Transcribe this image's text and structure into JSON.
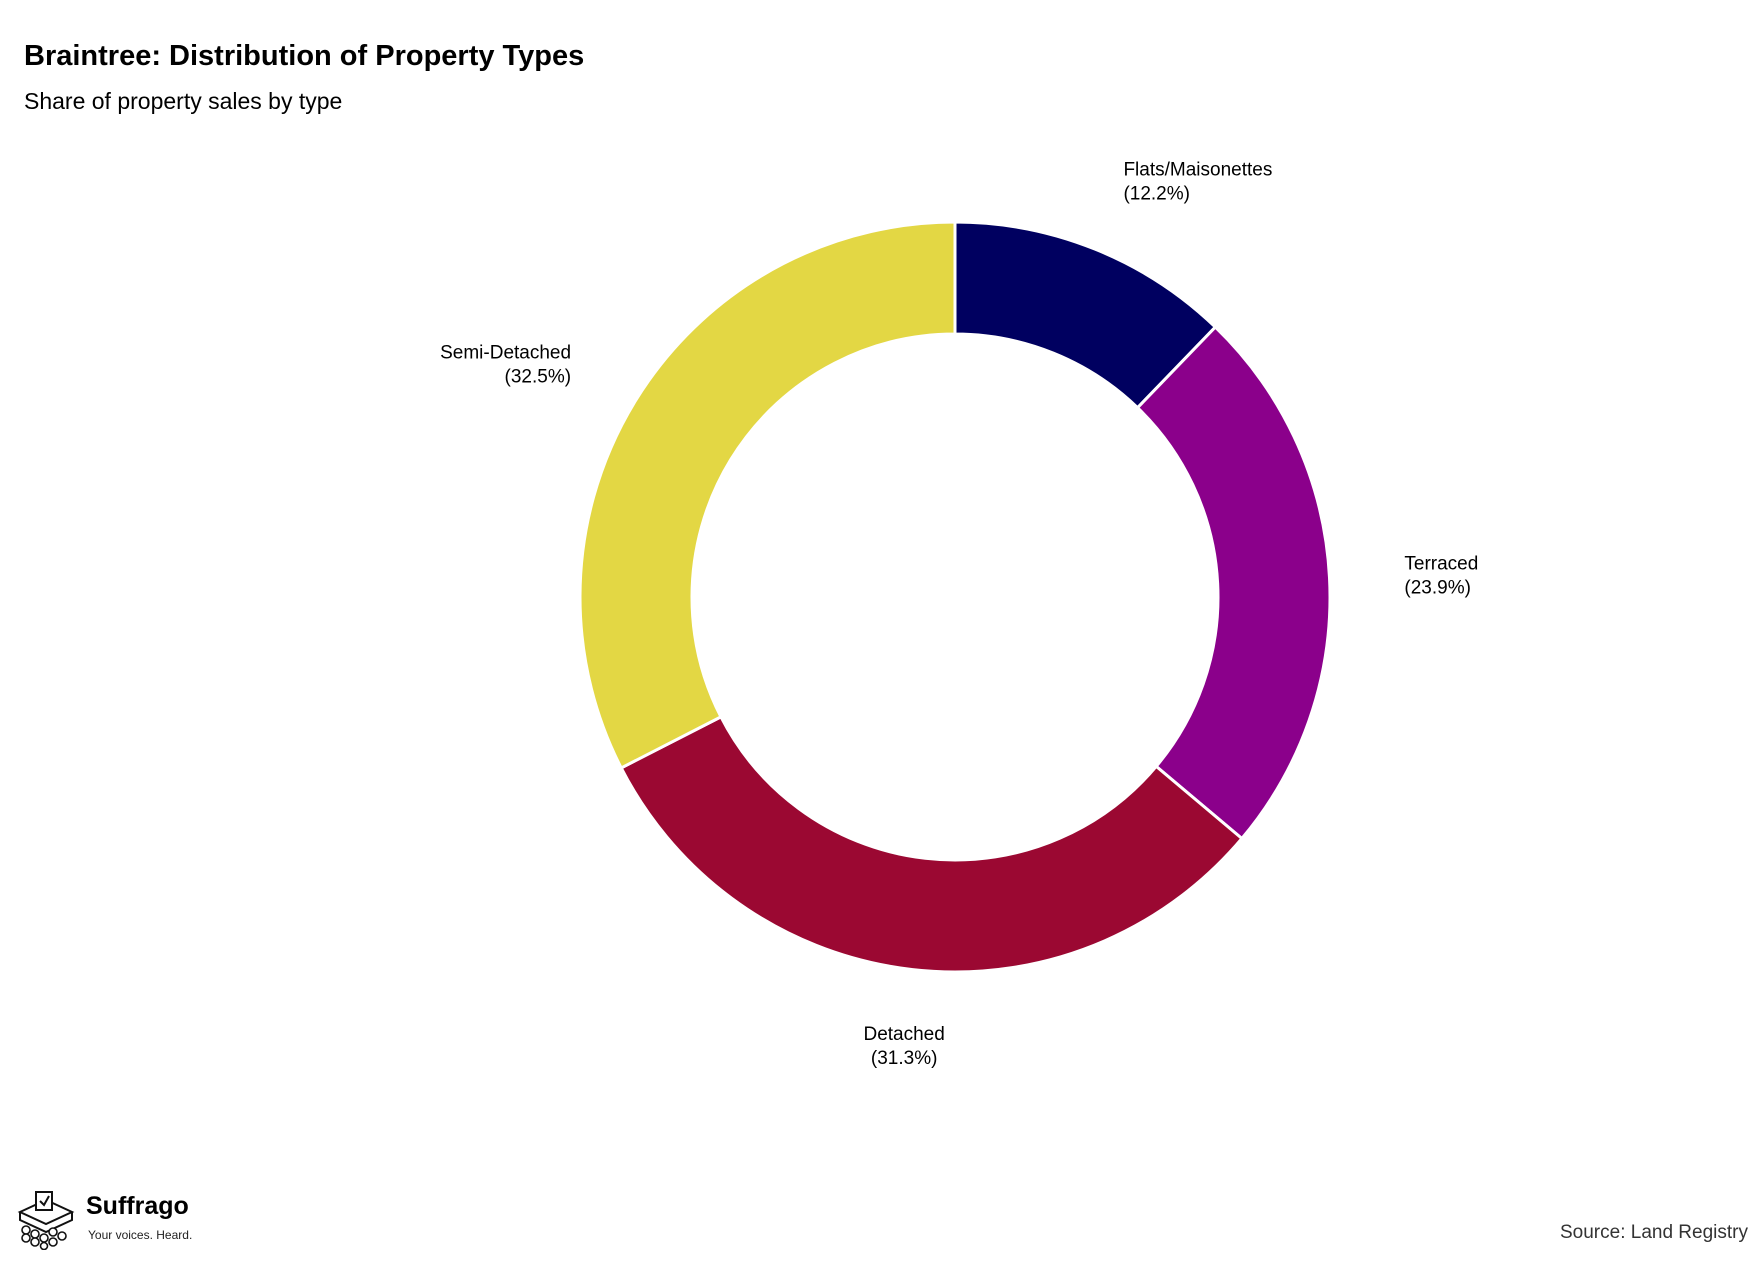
{
  "header": {
    "title": "Braintree: Distribution of Property Types",
    "subtitle": "Share of property sales by type"
  },
  "chart_data": {
    "type": "pie",
    "style": "donut",
    "title": "Braintree: Distribution of Property Types",
    "subtitle": "Share of property sales by type",
    "categories": [
      "Flats/Maisonettes",
      "Terraced",
      "Detached",
      "Semi-Detached"
    ],
    "values": [
      12.2,
      23.9,
      31.3,
      32.5
    ],
    "value_labels": [
      "(12.2%)",
      "(23.9%)",
      "(31.3%)",
      "(32.5%)"
    ],
    "colors": [
      "#000060",
      "#8b008b",
      "#9b0832",
      "#e3d744"
    ],
    "start": "top, clockwise",
    "legend": "none"
  },
  "branding": {
    "name": "Suffrago",
    "tagline": "Your voices. Heard.",
    "logo_icon": "ballot-box-icon"
  },
  "footer": {
    "source": "Source: Land Registry"
  }
}
